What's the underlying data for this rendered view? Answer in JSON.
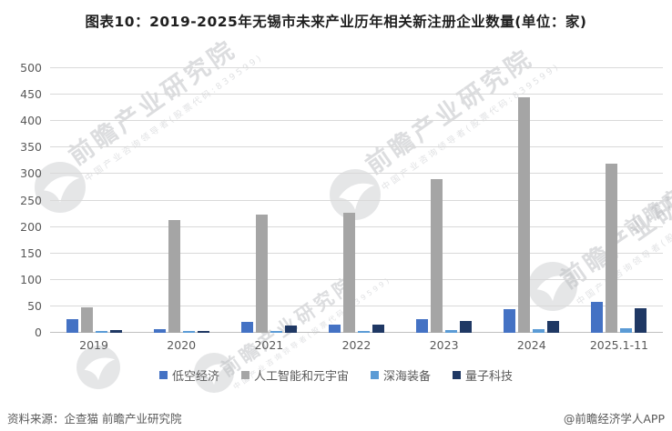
{
  "title": "图表10：2019-2025年无锡市未来产业历年相关新注册企业数量(单位：家)",
  "chart_data": {
    "type": "bar",
    "title": "图表10：2019-2025年无锡市未来产业历年相关新注册企业数量(单位：家)",
    "unit": "家",
    "categories": [
      "2019",
      "2020",
      "2021",
      "2022",
      "2023",
      "2024",
      "2025.1-11"
    ],
    "series": [
      {
        "name": "低空经济",
        "color": "#4472C4",
        "values": [
          26,
          7,
          20,
          15,
          25,
          44,
          58
        ]
      },
      {
        "name": "人工智能和元宇宙",
        "color": "#A5A5A5",
        "values": [
          48,
          213,
          223,
          226,
          290,
          445,
          320
        ]
      },
      {
        "name": "深海装备",
        "color": "#5B9BD5",
        "values": [
          3,
          3,
          3,
          4,
          5,
          7,
          8
        ]
      },
      {
        "name": "量子科技",
        "color": "#1F3864",
        "values": [
          5,
          3,
          13,
          15,
          22,
          22,
          46
        ]
      }
    ],
    "ylim": [
      0,
      500
    ],
    "ytick_step": 50,
    "yticks": [
      0,
      50,
      100,
      150,
      200,
      250,
      300,
      350,
      400,
      450,
      500
    ],
    "grid": true,
    "legend_position": "bottom"
  },
  "footer": {
    "source": "资料来源：企查猫 前瞻产业研究院",
    "credit": "@前瞻经济学人APP"
  },
  "watermark": {
    "text": "前瞻产业研究院",
    "subtext": "中国产业咨询领导者(股票代码:839599)"
  }
}
